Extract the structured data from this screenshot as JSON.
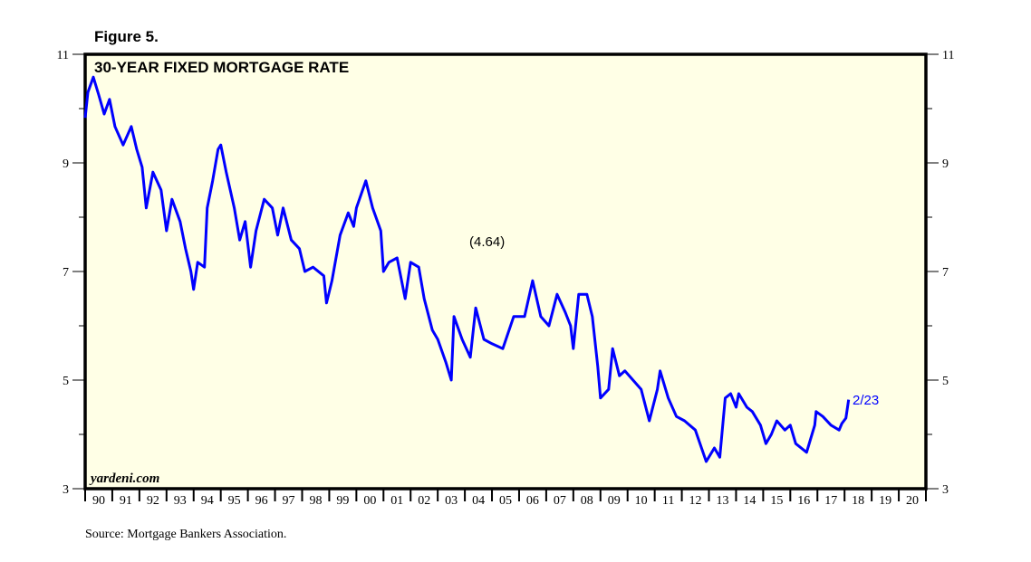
{
  "figure_label": "Figure 5.",
  "source": "Source: Mortgage Bankers Association.",
  "watermark": "yardeni.com",
  "chart_data": {
    "type": "line",
    "title": "30-YEAR FIXED MORTGAGE RATE",
    "xlabel": "",
    "ylabel": "",
    "xlim": [
      1990,
      2021
    ],
    "ylim": [
      3,
      11
    ],
    "yticks": [
      3,
      5,
      7,
      9,
      11
    ],
    "yticks_minor": [
      4,
      6,
      8,
      10
    ],
    "ytick_labels": [
      "3",
      "5",
      "7",
      "9",
      "11"
    ],
    "xtick_labels": [
      "90",
      "91",
      "92",
      "93",
      "94",
      "95",
      "96",
      "97",
      "98",
      "99",
      "00",
      "01",
      "02",
      "03",
      "04",
      "05",
      "06",
      "07",
      "08",
      "09",
      "10",
      "11",
      "12",
      "13",
      "14",
      "15",
      "16",
      "17",
      "18",
      "19",
      "20"
    ],
    "grid": false,
    "annotations": {
      "last_value": "(4.64)",
      "last_date": "2/23"
    },
    "colors": {
      "line": "#0000ff",
      "background": "#ffffe6",
      "annotation": "#0000ff"
    },
    "series": [
      {
        "name": "30-Year Fixed Mortgage Rate",
        "points": [
          [
            1990.0,
            9.83
          ],
          [
            1990.1,
            10.3
          ],
          [
            1990.3,
            10.58
          ],
          [
            1990.5,
            10.25
          ],
          [
            1990.7,
            9.9
          ],
          [
            1990.9,
            10.17
          ],
          [
            1991.1,
            9.67
          ],
          [
            1991.4,
            9.33
          ],
          [
            1991.7,
            9.67
          ],
          [
            1991.9,
            9.25
          ],
          [
            1992.1,
            8.92
          ],
          [
            1992.25,
            8.17
          ],
          [
            1992.5,
            8.83
          ],
          [
            1992.8,
            8.5
          ],
          [
            1993.0,
            7.75
          ],
          [
            1993.2,
            8.33
          ],
          [
            1993.5,
            7.92
          ],
          [
            1993.7,
            7.42
          ],
          [
            1993.9,
            7.0
          ],
          [
            1994.0,
            6.67
          ],
          [
            1994.15,
            7.17
          ],
          [
            1994.4,
            7.08
          ],
          [
            1994.5,
            8.17
          ],
          [
            1994.7,
            8.67
          ],
          [
            1994.9,
            9.25
          ],
          [
            1995.0,
            9.33
          ],
          [
            1995.2,
            8.83
          ],
          [
            1995.5,
            8.17
          ],
          [
            1995.7,
            7.58
          ],
          [
            1995.9,
            7.92
          ],
          [
            1996.1,
            7.08
          ],
          [
            1996.3,
            7.75
          ],
          [
            1996.6,
            8.33
          ],
          [
            1996.9,
            8.17
          ],
          [
            1997.1,
            7.67
          ],
          [
            1997.3,
            8.17
          ],
          [
            1997.6,
            7.58
          ],
          [
            1997.9,
            7.42
          ],
          [
            1998.1,
            7.0
          ],
          [
            1998.4,
            7.08
          ],
          [
            1998.8,
            6.92
          ],
          [
            1998.9,
            6.42
          ],
          [
            1999.1,
            6.83
          ],
          [
            1999.4,
            7.67
          ],
          [
            1999.7,
            8.08
          ],
          [
            1999.9,
            7.83
          ],
          [
            2000.0,
            8.17
          ],
          [
            2000.35,
            8.67
          ],
          [
            2000.6,
            8.17
          ],
          [
            2000.9,
            7.75
          ],
          [
            2001.0,
            7.0
          ],
          [
            2001.2,
            7.17
          ],
          [
            2001.5,
            7.25
          ],
          [
            2001.8,
            6.5
          ],
          [
            2002.0,
            7.17
          ],
          [
            2002.3,
            7.08
          ],
          [
            2002.5,
            6.5
          ],
          [
            2002.8,
            5.92
          ],
          [
            2003.0,
            5.75
          ],
          [
            2003.3,
            5.33
          ],
          [
            2003.5,
            5.0
          ],
          [
            2003.6,
            6.17
          ],
          [
            2003.9,
            5.75
          ],
          [
            2004.2,
            5.42
          ],
          [
            2004.4,
            6.33
          ],
          [
            2004.7,
            5.75
          ],
          [
            2005.0,
            5.67
          ],
          [
            2005.4,
            5.58
          ],
          [
            2005.8,
            6.17
          ],
          [
            2006.2,
            6.17
          ],
          [
            2006.5,
            6.83
          ],
          [
            2006.8,
            6.17
          ],
          [
            2007.1,
            6.0
          ],
          [
            2007.4,
            6.58
          ],
          [
            2007.7,
            6.25
          ],
          [
            2007.9,
            6.0
          ],
          [
            2008.0,
            5.58
          ],
          [
            2008.2,
            6.58
          ],
          [
            2008.5,
            6.58
          ],
          [
            2008.7,
            6.17
          ],
          [
            2008.9,
            5.25
          ],
          [
            2009.0,
            4.67
          ],
          [
            2009.3,
            4.83
          ],
          [
            2009.45,
            5.58
          ],
          [
            2009.7,
            5.08
          ],
          [
            2009.9,
            5.17
          ],
          [
            2010.2,
            5.0
          ],
          [
            2010.5,
            4.83
          ],
          [
            2010.8,
            4.25
          ],
          [
            2011.1,
            4.83
          ],
          [
            2011.2,
            5.17
          ],
          [
            2011.5,
            4.67
          ],
          [
            2011.8,
            4.33
          ],
          [
            2012.1,
            4.25
          ],
          [
            2012.5,
            4.08
          ],
          [
            2012.9,
            3.5
          ],
          [
            2013.2,
            3.75
          ],
          [
            2013.4,
            3.58
          ],
          [
            2013.6,
            4.67
          ],
          [
            2013.8,
            4.75
          ],
          [
            2014.0,
            4.5
          ],
          [
            2014.1,
            4.75
          ],
          [
            2014.4,
            4.5
          ],
          [
            2014.6,
            4.42
          ],
          [
            2014.9,
            4.17
          ],
          [
            2015.1,
            3.83
          ],
          [
            2015.3,
            4.0
          ],
          [
            2015.5,
            4.25
          ],
          [
            2015.8,
            4.08
          ],
          [
            2016.0,
            4.17
          ],
          [
            2016.2,
            3.83
          ],
          [
            2016.6,
            3.67
          ],
          [
            2016.9,
            4.17
          ],
          [
            2016.95,
            4.42
          ],
          [
            2017.2,
            4.33
          ],
          [
            2017.5,
            4.17
          ],
          [
            2017.8,
            4.08
          ],
          [
            2017.9,
            4.2
          ],
          [
            2018.05,
            4.3
          ],
          [
            2018.15,
            4.64
          ]
        ]
      }
    ]
  }
}
